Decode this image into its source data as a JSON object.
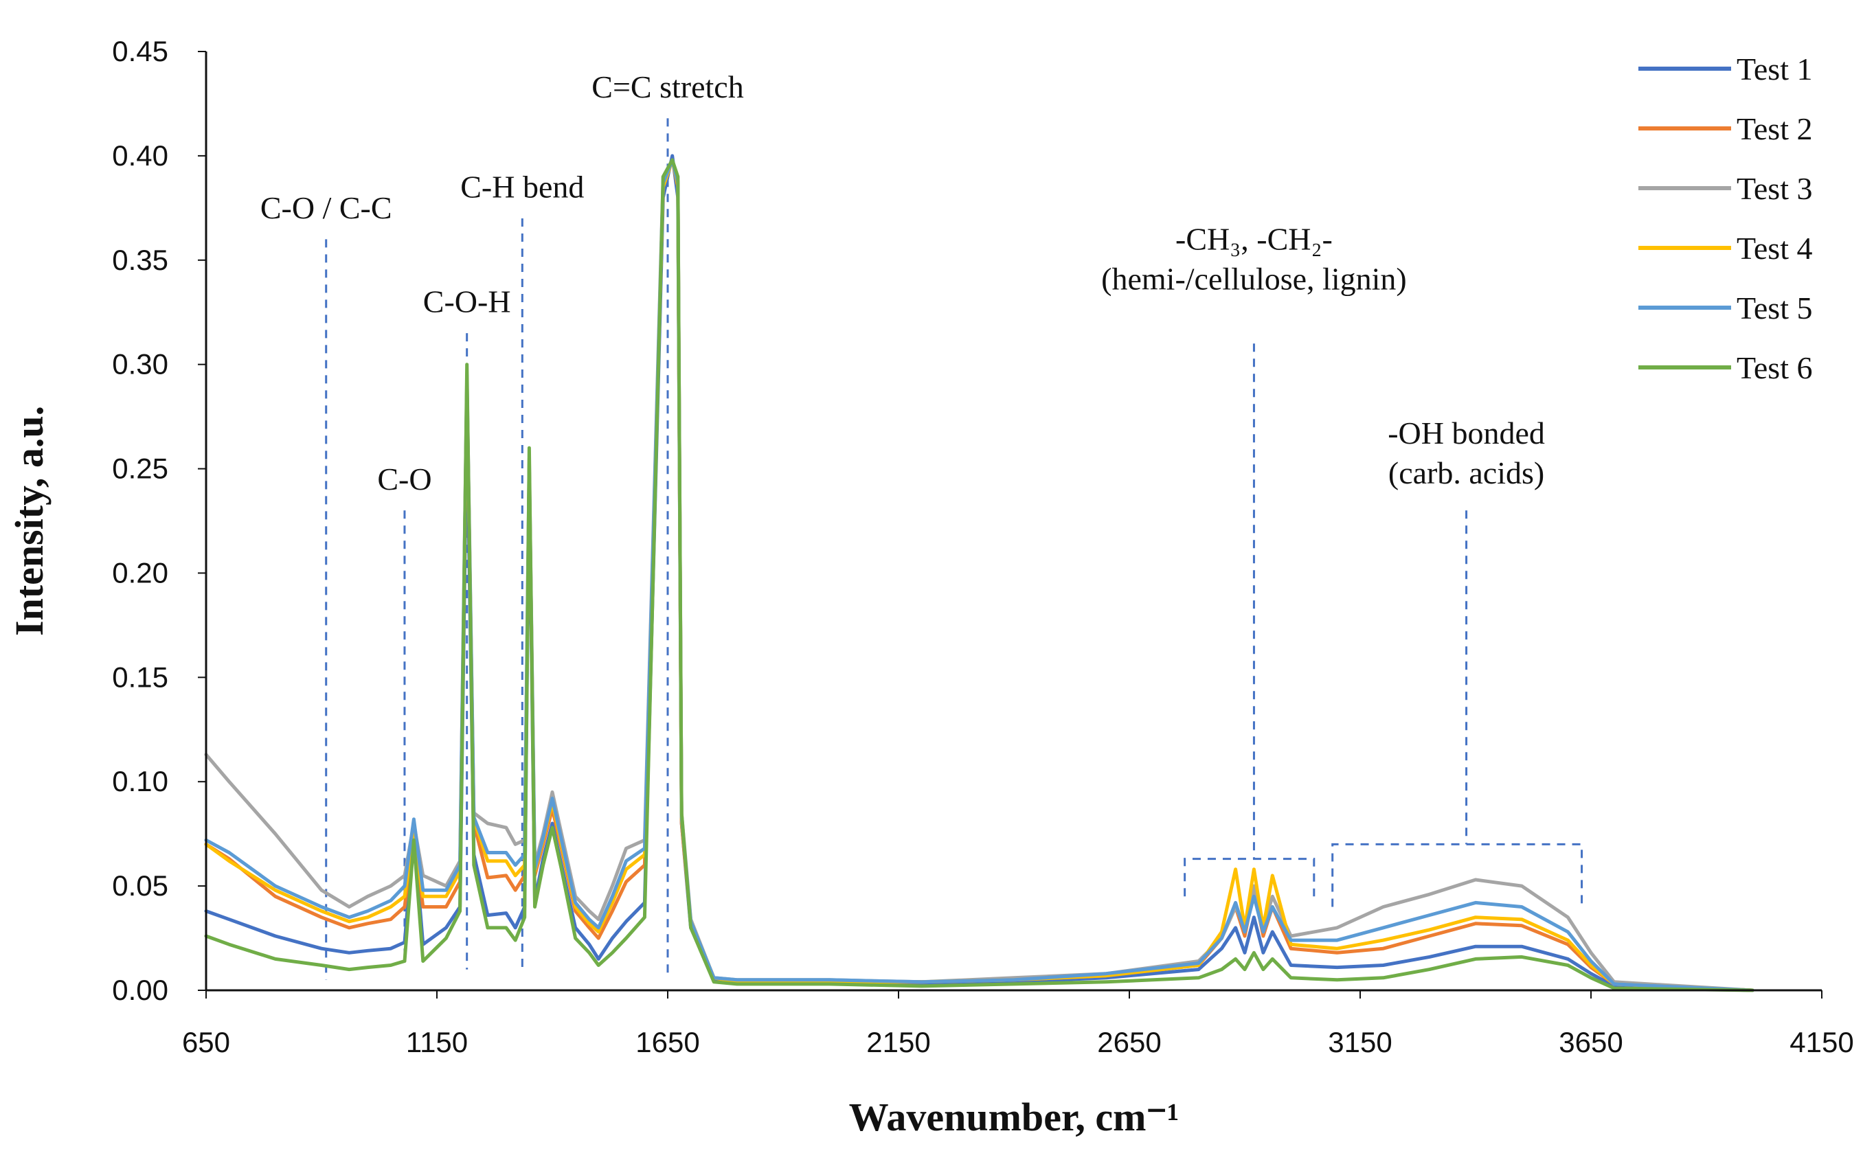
{
  "chart_data": {
    "type": "line",
    "title": "",
    "xlabel": "Wavenumber, cm⁻¹",
    "ylabel": "Intensity, a.u.",
    "xlim": [
      650,
      4150
    ],
    "ylim": [
      0,
      0.45
    ],
    "x_ticks": [
      650,
      1150,
      1650,
      2150,
      2650,
      3150,
      3650,
      4150
    ],
    "y_ticks": [
      0,
      0.05,
      0.1,
      0.15,
      0.2,
      0.25,
      0.3,
      0.35,
      0.4,
      0.45
    ],
    "x_tick_labels": [
      "650",
      "1150",
      "1650",
      "2150",
      "2650",
      "3150",
      "3650",
      "4150"
    ],
    "y_tick_labels": [
      "0.00",
      "0.05",
      "0.10",
      "0.15",
      "0.20",
      "0.25",
      "0.30",
      "0.35",
      "0.40",
      "0.45"
    ],
    "grid": false,
    "legend_position": "top-right",
    "x": [
      650,
      700,
      800,
      900,
      960,
      1000,
      1050,
      1080,
      1100,
      1120,
      1170,
      1200,
      1215,
      1230,
      1260,
      1300,
      1320,
      1340,
      1350,
      1362,
      1380,
      1400,
      1420,
      1450,
      1480,
      1500,
      1530,
      1560,
      1600,
      1640,
      1660,
      1672,
      1680,
      1700,
      1750,
      1800,
      2000,
      2200,
      2400,
      2600,
      2800,
      2850,
      2880,
      2900,
      2920,
      2940,
      2960,
      3000,
      3100,
      3200,
      3300,
      3400,
      3500,
      3600,
      3650,
      3700,
      4000
    ],
    "series": [
      {
        "name": "Test 1",
        "color": "#4472C4",
        "values": [
          0.038,
          0.034,
          0.026,
          0.02,
          0.018,
          0.019,
          0.02,
          0.023,
          0.075,
          0.022,
          0.03,
          0.04,
          0.275,
          0.065,
          0.036,
          0.037,
          0.03,
          0.04,
          0.245,
          0.043,
          0.063,
          0.08,
          0.06,
          0.03,
          0.022,
          0.015,
          0.025,
          0.033,
          0.042,
          0.38,
          0.4,
          0.38,
          0.08,
          0.03,
          0.005,
          0.004,
          0.004,
          0.003,
          0.004,
          0.006,
          0.01,
          0.02,
          0.03,
          0.018,
          0.035,
          0.018,
          0.028,
          0.012,
          0.011,
          0.012,
          0.016,
          0.021,
          0.021,
          0.015,
          0.008,
          0.002,
          0.0
        ]
      },
      {
        "name": "Test 2",
        "color": "#ED7D31",
        "values": [
          0.07,
          0.063,
          0.045,
          0.035,
          0.03,
          0.032,
          0.034,
          0.04,
          0.075,
          0.04,
          0.04,
          0.052,
          0.29,
          0.08,
          0.054,
          0.055,
          0.048,
          0.055,
          0.25,
          0.055,
          0.07,
          0.087,
          0.068,
          0.038,
          0.03,
          0.025,
          0.038,
          0.052,
          0.06,
          0.385,
          0.398,
          0.385,
          0.08,
          0.032,
          0.006,
          0.004,
          0.004,
          0.004,
          0.005,
          0.007,
          0.012,
          0.025,
          0.04,
          0.026,
          0.048,
          0.026,
          0.04,
          0.02,
          0.018,
          0.02,
          0.026,
          0.032,
          0.031,
          0.022,
          0.011,
          0.003,
          0.0
        ]
      },
      {
        "name": "Test 3",
        "color": "#A5A5A5",
        "values": [
          0.113,
          0.1,
          0.075,
          0.048,
          0.04,
          0.045,
          0.05,
          0.055,
          0.08,
          0.055,
          0.05,
          0.062,
          0.295,
          0.085,
          0.08,
          0.078,
          0.07,
          0.072,
          0.255,
          0.06,
          0.075,
          0.095,
          0.075,
          0.045,
          0.038,
          0.034,
          0.05,
          0.068,
          0.072,
          0.39,
          0.398,
          0.388,
          0.085,
          0.034,
          0.006,
          0.005,
          0.005,
          0.004,
          0.006,
          0.008,
          0.014,
          0.025,
          0.04,
          0.03,
          0.05,
          0.03,
          0.045,
          0.026,
          0.03,
          0.04,
          0.046,
          0.053,
          0.05,
          0.035,
          0.018,
          0.004,
          0.0
        ]
      },
      {
        "name": "Test 4",
        "color": "#FFC000",
        "values": [
          0.07,
          0.062,
          0.048,
          0.038,
          0.033,
          0.035,
          0.04,
          0.045,
          0.075,
          0.045,
          0.045,
          0.057,
          0.29,
          0.082,
          0.062,
          0.062,
          0.055,
          0.06,
          0.25,
          0.057,
          0.072,
          0.09,
          0.07,
          0.04,
          0.032,
          0.028,
          0.042,
          0.058,
          0.065,
          0.385,
          0.398,
          0.386,
          0.082,
          0.033,
          0.006,
          0.004,
          0.004,
          0.004,
          0.005,
          0.007,
          0.012,
          0.028,
          0.058,
          0.03,
          0.058,
          0.03,
          0.055,
          0.022,
          0.02,
          0.024,
          0.029,
          0.035,
          0.034,
          0.024,
          0.012,
          0.003,
          0.0
        ]
      },
      {
        "name": "Test 5",
        "color": "#5B9BD5",
        "values": [
          0.072,
          0.066,
          0.05,
          0.04,
          0.035,
          0.038,
          0.043,
          0.05,
          0.082,
          0.048,
          0.048,
          0.06,
          0.292,
          0.083,
          0.066,
          0.066,
          0.06,
          0.065,
          0.252,
          0.058,
          0.073,
          0.092,
          0.072,
          0.042,
          0.034,
          0.03,
          0.045,
          0.062,
          0.068,
          0.387,
          0.398,
          0.387,
          0.083,
          0.033,
          0.006,
          0.005,
          0.005,
          0.004,
          0.005,
          0.008,
          0.013,
          0.025,
          0.042,
          0.028,
          0.045,
          0.028,
          0.04,
          0.024,
          0.024,
          0.03,
          0.036,
          0.042,
          0.04,
          0.028,
          0.014,
          0.003,
          0.0
        ]
      },
      {
        "name": "Test 6",
        "color": "#70AD47",
        "values": [
          0.026,
          0.022,
          0.015,
          0.012,
          0.01,
          0.011,
          0.012,
          0.014,
          0.072,
          0.014,
          0.025,
          0.038,
          0.3,
          0.06,
          0.03,
          0.03,
          0.024,
          0.035,
          0.26,
          0.04,
          0.06,
          0.078,
          0.058,
          0.025,
          0.018,
          0.012,
          0.018,
          0.025,
          0.035,
          0.39,
          0.398,
          0.39,
          0.085,
          0.03,
          0.004,
          0.003,
          0.003,
          0.002,
          0.003,
          0.004,
          0.006,
          0.01,
          0.015,
          0.01,
          0.018,
          0.01,
          0.015,
          0.006,
          0.005,
          0.006,
          0.01,
          0.015,
          0.016,
          0.012,
          0.006,
          0.001,
          0.0
        ]
      }
    ],
    "annotations": [
      {
        "id": "co-cc",
        "x": 910,
        "lines": [
          "C-O / C-C"
        ],
        "y_text": 0.37,
        "y_line_top": 0.36,
        "y_line_bottom": 0.005
      },
      {
        "id": "co",
        "x": 1080,
        "lines": [
          "C-O"
        ],
        "y_text": 0.24,
        "y_line_top": 0.23,
        "y_line_bottom": 0.015
      },
      {
        "id": "coh",
        "x": 1215,
        "lines": [
          "C-O-H"
        ],
        "y_text": 0.325,
        "y_line_top": 0.315,
        "y_line_bottom": 0.01
      },
      {
        "id": "ch-bend",
        "x": 1335,
        "lines": [
          "C-H bend"
        ],
        "y_text": 0.38,
        "y_line_top": 0.37,
        "y_line_bottom": 0.008
      },
      {
        "id": "cc-stretch",
        "x": 1650,
        "lines": [
          "C=C stretch"
        ],
        "y_text": 0.428,
        "y_line_top": 0.418,
        "y_line_bottom": 0.008
      },
      {
        "id": "ch3-ch2",
        "x": 2920,
        "lines": [
          "-CH₃, -CH₂-",
          "(hemi-/cellulose, lignin)"
        ],
        "y_text": 0.355,
        "y_line_top": 0.31,
        "y_line_bottom": 0.063
      },
      {
        "id": "oh-bonded",
        "x": 3380,
        "lines": [
          "-OH bonded",
          "(carb. acids)"
        ],
        "y_text": 0.262,
        "y_line_top": 0.23,
        "y_line_bottom": 0.07
      }
    ],
    "brackets": [
      {
        "id": "ch-region",
        "x_start": 2770,
        "x_end": 3050,
        "y_top": 0.063,
        "y_bottom": 0.045
      },
      {
        "id": "oh-region",
        "x_start": 3090,
        "x_end": 3630,
        "y_top": 0.07,
        "y_bottom": 0.04
      }
    ]
  }
}
